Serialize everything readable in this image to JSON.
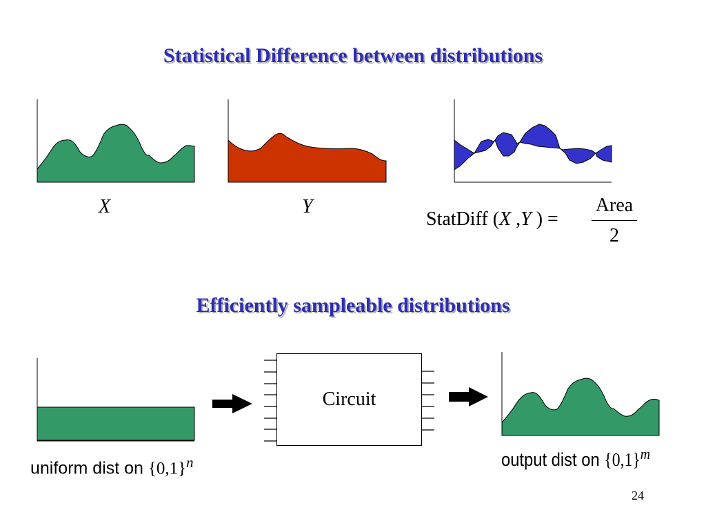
{
  "slide": {
    "title": "Statistical Difference between distributions",
    "subtitle": "Efficiently sampleable distributions",
    "page_number": "24"
  },
  "distributions": {
    "x_label": "X",
    "y_label": "Y"
  },
  "formula": {
    "function_name": "StatDiff",
    "open_paren": "(",
    "arg1": "X",
    "comma": ",",
    "arg2": "Y",
    "close_paren": ")",
    "equals": "=",
    "numerator": "Area",
    "denominator": "2"
  },
  "circuit": {
    "label": "Circuit"
  },
  "uniform": {
    "caption": "uniform dist on",
    "set": "{0,1}",
    "exponent": "n"
  },
  "output": {
    "caption": "output dist on",
    "set": "{0,1}",
    "exponent": "m"
  },
  "colors": {
    "title": "#2d2db4",
    "green_fill": "#339966",
    "red_fill": "#cc3300",
    "blue_fill": "#3333cc"
  }
}
